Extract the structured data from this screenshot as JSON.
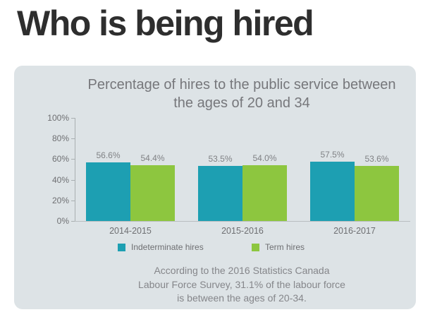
{
  "page": {
    "heading": "Who is being hired"
  },
  "chart_data": {
    "type": "bar",
    "title": "Percentage of hires to the public service between the ages of 20 and 34",
    "categories": [
      "2014-2015",
      "2015-2016",
      "2016-2017"
    ],
    "series": [
      {
        "name": "Indeterminate hires",
        "color": "#1D9FB2",
        "values": [
          56.6,
          53.5,
          57.5
        ]
      },
      {
        "name": "Term hires",
        "color": "#8DC63F",
        "values": [
          54.4,
          54.0,
          53.6
        ]
      }
    ],
    "value_suffix": "%",
    "ylim": [
      0,
      100
    ],
    "yticks": [
      0,
      20,
      40,
      60,
      80,
      100
    ],
    "ytick_suffix": "%",
    "grid": false,
    "legend_position": "bottom",
    "footnote_lines": [
      "According to the 2016 Statistics Canada",
      "Labour Force Survey, 31.1% of the labour force",
      "is between the ages of 20-34."
    ]
  },
  "colors": {
    "page_bg": "#FFFFFF",
    "panel_bg": "#DDE3E6",
    "heading_text": "#2E2E2E",
    "chart_title_text": "#76777B",
    "axis_label_text": "#6E6F72",
    "value_label_text": "#808285",
    "footnote_text": "#85868A",
    "axis_line": "#A9AFB1"
  }
}
